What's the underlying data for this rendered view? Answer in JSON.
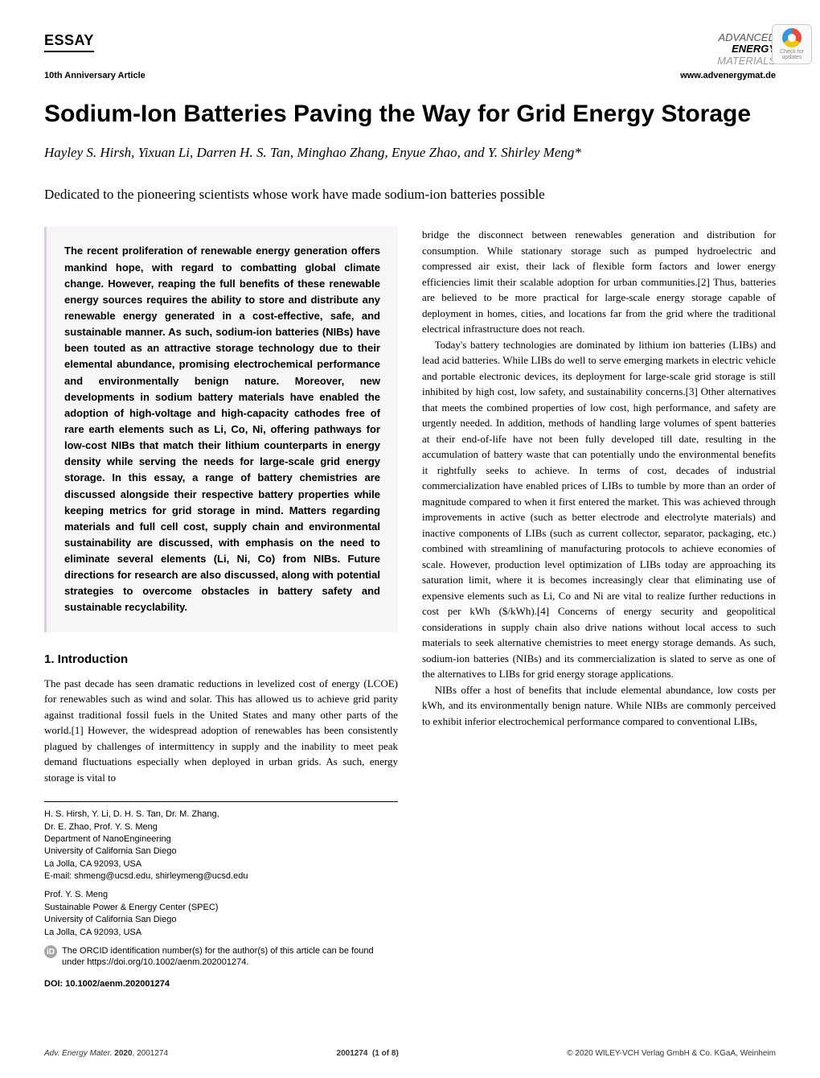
{
  "header": {
    "essay_label": "ESSAY",
    "anniversary": "10th Anniversary Article",
    "journal_line1": "ADVANCED",
    "journal_line2": "ENERGY",
    "journal_line3": "MATERIALS",
    "website": "www.advenergymat.de",
    "check_line1": "Check for",
    "check_line2": "updates"
  },
  "title": "Sodium-Ion Batteries Paving the Way for Grid Energy Storage",
  "authors": "Hayley S. Hirsh, Yixuan Li, Darren H. S. Tan, Minghao Zhang, Enyue Zhao, and Y. Shirley Meng*",
  "dedication": "Dedicated to the pioneering scientists whose work have made sodium-ion batteries possible",
  "abstract": "The recent proliferation of renewable energy generation offers mankind hope, with regard to combatting global climate change. However, reaping the full benefits of these renewable energy sources requires the ability to store and distribute any renewable energy generated in a cost-effective, safe, and sustainable manner. As such, sodium-ion batteries (NIBs) have been touted as an attractive storage technology due to their elemental abundance, promising electrochemical performance and environmentally benign nature. Moreover, new developments in sodium battery materials have enabled the adoption of high-voltage and high-capacity cathodes free of rare earth elements such as Li, Co, Ni, offering pathways for low-cost NIBs that match their lithium counterparts in energy density while serving the needs for large-scale grid energy storage. In this essay, a range of battery chemistries are discussed alongside their respective battery properties while keeping metrics for grid storage in mind. Matters regarding materials and full cell cost, supply chain and environmental sustainability are discussed, with emphasis on the need to eliminate several elements (Li, Ni, Co) from NIBs. Future directions for research are also discussed, along with potential strategies to overcome obstacles in battery safety and sustainable recyclability.",
  "section1_heading": "1. Introduction",
  "intro_p1": "The past decade has seen dramatic reductions in levelized cost of energy (LCOE) for renewables such as wind and solar. This has allowed us to achieve grid parity against traditional fossil fuels in the United States and many other parts of the world.[1] However, the widespread adoption of renewables has been consistently plagued by challenges of intermittency in supply and the inability to meet peak demand fluctuations especially when deployed in urban grids. As such, energy storage is vital to",
  "right_p1": "bridge the disconnect between renewables generation and distribution for consumption. While stationary storage such as pumped hydroelectric and compressed air exist, their lack of flexible form factors and lower energy efficiencies limit their scalable adoption for urban communities.[2] Thus, batteries are believed to be more practical for large-scale energy storage capable of deployment in homes, cities, and locations far from the grid where the traditional electrical infrastructure does not reach.",
  "right_p2": "Today's battery technologies are dominated by lithium ion batteries (LIBs) and lead acid batteries. While LIBs do well to serve emerging markets in electric vehicle and portable electronic devices, its deployment for large-scale grid storage is still inhibited by high cost, low safety, and sustainability concerns.[3] Other alternatives that meets the combined properties of low cost, high performance, and safety are urgently needed. In addition, methods of handling large volumes of spent batteries at their end-of-life have not been fully developed till date, resulting in the accumulation of battery waste that can potentially undo the environmental benefits it rightfully seeks to achieve. In terms of cost, decades of industrial commercialization have enabled prices of LIBs to tumble by more than an order of magnitude compared to when it first entered the market. This was achieved through improvements in active (such as better electrode and electrolyte materials) and inactive components of LIBs (such as current collector, separator, packaging, etc.) combined with streamlining of manufacturing protocols to achieve economies of scale. However, production level optimization of LIBs today are approaching its saturation limit, where it is becomes increasingly clear that eliminating use of expensive elements such as Li, Co and Ni are vital to realize further reductions in cost per kWh ($/kWh).[4] Concerns of energy security and geopolitical considerations in supply chain also drive nations without local access to such materials to seek alternative chemistries to meet energy storage demands. As such, sodium-ion batteries (NIBs) and its commercialization is slated to serve as one of the alternatives to LIBs for grid energy storage applications.",
  "right_p3": "NIBs offer a host of benefits that include elemental abundance, low costs per kWh, and its environmentally benign nature. While NIBs are commonly perceived to exhibit inferior electrochemical performance compared to conventional LIBs,",
  "affiliations": {
    "group1_authors": "H. S. Hirsh, Y. Li, D. H. S. Tan, Dr. M. Zhang,",
    "group1_authors2": "Dr. E. Zhao, Prof. Y. S. Meng",
    "group1_dept": "Department of NanoEngineering",
    "group1_univ": "University of California San Diego",
    "group1_addr": "La Jolla, CA 92093, USA",
    "group1_email": "E-mail: shmeng@ucsd.edu, shirleymeng@ucsd.edu",
    "group2_author": "Prof. Y. S. Meng",
    "group2_dept": "Sustainable Power & Energy Center (SPEC)",
    "group2_univ": "University of California San Diego",
    "group2_addr": "La Jolla, CA 92093, USA",
    "orcid_text": "The ORCID identification number(s) for the author(s) of this article can be found under https://doi.org/10.1002/aenm.202001274.",
    "orcid_badge": "iD"
  },
  "doi": "DOI: 10.1002/aenm.202001274",
  "footer": {
    "left_journal": "Adv. Energy Mater.",
    "left_year": "2020",
    "left_id": ", 2001274",
    "center": "2001274  (1 of 8)",
    "right": "© 2020 WILEY-VCH Verlag GmbH & Co. KGaA, Weinheim"
  },
  "colors": {
    "abstract_bg": "#f8f5f9",
    "abstract_border": "#d8d0dc",
    "text": "#000000",
    "background": "#ffffff"
  },
  "typography": {
    "title_fontsize": 30,
    "authors_fontsize": 17,
    "body_fontsize": 13,
    "abstract_fontsize": 13,
    "affil_fontsize": 11,
    "footer_fontsize": 10
  }
}
